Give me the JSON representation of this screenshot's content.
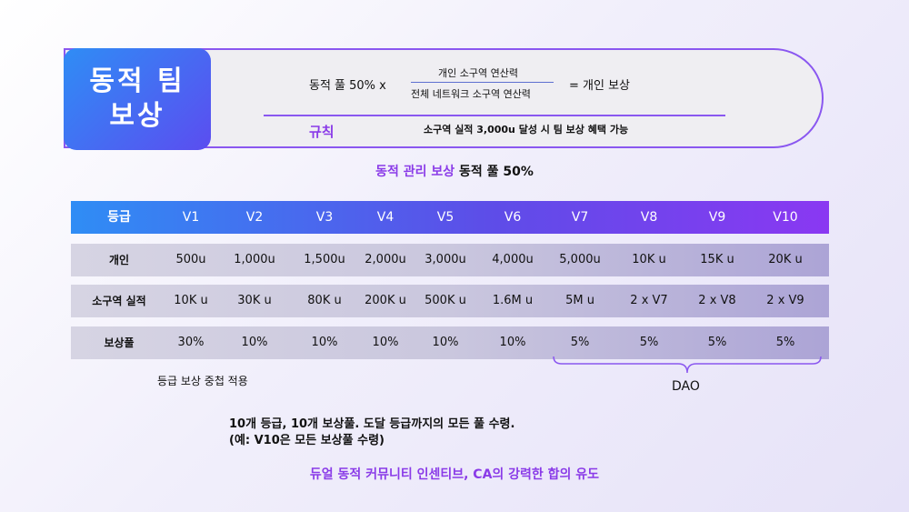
{
  "title": [
    "동적 팀",
    "보상"
  ],
  "formula": {
    "left": "동적 풀 50% x",
    "numerator": "개인 소구역 연산력",
    "denominator": "전체 네트워크 소구역 연산력",
    "right": "= 개인 보상"
  },
  "rule": {
    "label": "규칙",
    "text": "소구역 실적 3,000u 달성 시 팀 보상 혜택 가능"
  },
  "subtitle": {
    "accent": "동적 관리 보상",
    "rest": " 동적 풀 50%"
  },
  "table": {
    "header": [
      "등급",
      "V1",
      "V2",
      "V3",
      "V4",
      "V5",
      "V6",
      "V7",
      "V8",
      "V9",
      "V10"
    ],
    "rows": [
      [
        "개인",
        "500u",
        "1,000u",
        "1,500u",
        "2,000u",
        "3,000u",
        "4,000u",
        "5,000u",
        "10K u",
        "15K u",
        "20K u"
      ],
      [
        "소구역 실적",
        "10K u",
        "30K u",
        "80K u",
        "200K u",
        "500K u",
        "1.6M u",
        "5M u",
        "2 x V7",
        "2 x V8",
        "2 x V9"
      ],
      [
        "보상풀",
        "30%",
        "10%",
        "10%",
        "10%",
        "10%",
        "10%",
        "5%",
        "5%",
        "5%",
        "5%"
      ]
    ]
  },
  "note": "등급 보상 중첩 적용",
  "dao_label": "DAO",
  "bottom_lines": [
    "10개 등급, 10개 보상풀. 도달 등급까지의 모든 풀 수령.",
    "(예: V10은 모든 보상풀 수령)"
  ],
  "tagline": "듀얼 동적 커뮤니티 인센티브, CA의 강력한 합의 유도",
  "colors": {
    "accent_purple": "#8a3be8",
    "border_purple": "#8a57f0",
    "blue": "#2f8df5"
  }
}
